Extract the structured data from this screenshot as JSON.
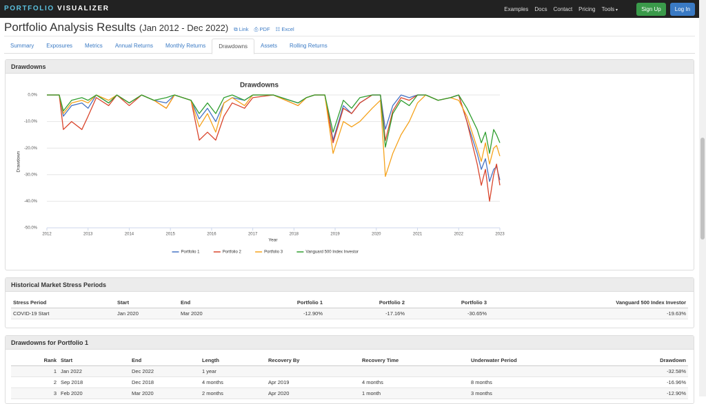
{
  "nav": {
    "brand": [
      "PORTFOLIO",
      "VISUALIZER"
    ],
    "links": [
      "Examples",
      "Docs",
      "Contact",
      "Pricing",
      "Tools"
    ],
    "buttons": [
      "Sign Up",
      "Log In"
    ]
  },
  "header": {
    "title": "Portfolio Analysis Results",
    "period": "(Jan 2012 - Dec 2022)",
    "links": [
      "Link",
      "PDF",
      "Excel"
    ]
  },
  "tabs": {
    "items": [
      "Summary",
      "Exposures",
      "Metrics",
      "Annual Returns",
      "Monthly Returns",
      "Drawdowns",
      "Assets",
      "Rolling Returns"
    ],
    "active": 5
  },
  "drawdowns_panel": {
    "title": "Drawdowns"
  },
  "chart_data": {
    "type": "line",
    "title": "Drawdowns",
    "x_label": "Year",
    "y_label": "Drawdown",
    "x": [
      2012,
      2012.3,
      2012.4,
      2012.6,
      2012.85,
      2013,
      2013.2,
      2013.5,
      2013.7,
      2014,
      2014.3,
      2014.6,
      2014.9,
      2015.1,
      2015.5,
      2015.7,
      2015.9,
      2016.1,
      2016.3,
      2016.5,
      2016.8,
      2017,
      2017.5,
      2018.1,
      2018.3,
      2018.5,
      2018.75,
      2018.95,
      2019.2,
      2019.4,
      2019.6,
      2019.9,
      2020.1,
      2020.22,
      2020.4,
      2020.6,
      2020.8,
      2021,
      2021.2,
      2021.5,
      2021.8,
      2022,
      2022.2,
      2022.45,
      2022.55,
      2022.65,
      2022.75,
      2022.85,
      2022.92,
      2023
    ],
    "xlim": [
      2012,
      2023
    ],
    "xticks": [
      2012,
      2013,
      2014,
      2015,
      2016,
      2017,
      2018,
      2019,
      2020,
      2021,
      2022,
      2023
    ],
    "ylim": [
      -50,
      0
    ],
    "yticks": [
      {
        "value": 0,
        "label": "0.0%"
      },
      {
        "value": -10,
        "label": "-10.0%"
      },
      {
        "value": -20,
        "label": "-20.0%"
      },
      {
        "value": -30,
        "label": "-30.0%"
      },
      {
        "value": -40,
        "label": "-40.0%"
      },
      {
        "value": -50,
        "label": "-50.0%"
      }
    ],
    "grid": true,
    "legend": "bottom",
    "series": [
      {
        "name": "Portfolio 1",
        "color": "#4472c4",
        "values": [
          0,
          0,
          -8,
          -4,
          -3,
          -5,
          0,
          -3,
          0,
          -3,
          0,
          -2,
          -3,
          0,
          -2,
          -9,
          -5,
          -10,
          -3,
          -1,
          -2,
          0,
          0,
          -3,
          -1,
          0,
          0,
          -17,
          -4,
          -7,
          -3,
          0,
          0,
          -12.9,
          -4,
          0,
          -1,
          0,
          0,
          -2,
          -1,
          0,
          -10,
          -22,
          -28,
          -24,
          -32.58,
          -28,
          -27,
          -32
        ]
      },
      {
        "name": "Portfolio 2",
        "color": "#d9442b",
        "values": [
          0,
          0,
          -13,
          -10,
          -13,
          -8,
          -1,
          -4,
          0,
          -4,
          0,
          -2,
          -5,
          0,
          -2,
          -17,
          -14,
          -17,
          -8,
          -3,
          -5,
          -1,
          0,
          -4,
          -1,
          0,
          0,
          -18,
          -5,
          -7,
          -3,
          0,
          0,
          -17.16,
          -6,
          -1,
          -2,
          0,
          0,
          -2,
          -1,
          0,
          -10,
          -26,
          -34,
          -28,
          -40,
          -30,
          -26,
          -34
        ]
      },
      {
        "name": "Portfolio 3",
        "color": "#f5a21b",
        "values": [
          0,
          0,
          -7,
          -3,
          -2,
          -3,
          0,
          -2,
          0,
          -3,
          0,
          -2,
          -5,
          0,
          -2,
          -12,
          -7,
          -14,
          -3,
          -1,
          -4,
          0,
          0,
          -4,
          -1,
          0,
          0,
          -22,
          -10,
          -12,
          -10,
          -5,
          -2,
          -30.65,
          -22,
          -15,
          -10,
          -3,
          0,
          -2,
          -1,
          -2,
          -8,
          -20,
          -25,
          -18,
          -26,
          -20,
          -19,
          -23
        ]
      },
      {
        "name": "Vanguard 500 Index Investor",
        "color": "#2f9e2f",
        "values": [
          0,
          0,
          -6,
          -2,
          -1,
          -2,
          0,
          -3,
          0,
          -3,
          0,
          -2,
          -1,
          0,
          -2,
          -7,
          -3,
          -7,
          -1,
          0,
          -2,
          0,
          0,
          -3,
          -1,
          0,
          0,
          -14,
          -2,
          -5,
          -1,
          0,
          0,
          -19.63,
          -7,
          -2,
          -4,
          0,
          0,
          -2,
          -1,
          0,
          -5,
          -13,
          -18,
          -14,
          -22,
          -13,
          -15,
          -18
        ]
      }
    ]
  },
  "stress_panel": {
    "title": "Historical Market Stress Periods",
    "columns": [
      "Stress Period",
      "Start",
      "End",
      "Portfolio 1",
      "Portfolio 2",
      "Portfolio 3",
      "Vanguard 500 Index Investor"
    ],
    "rows": [
      [
        "COVID-19 Start",
        "Jan 2020",
        "Mar 2020",
        "-12.90%",
        "-17.16%",
        "-30.65%",
        "-19.63%"
      ]
    ]
  },
  "dd_panel": {
    "title": "Drawdowns for Portfolio 1",
    "columns": [
      "Rank",
      "Start",
      "End",
      "Length",
      "Recovery By",
      "Recovery Time",
      "Underwater Period",
      "Drawdown"
    ],
    "rows": [
      [
        "1",
        "Jan 2022",
        "Dec 2022",
        "1 year",
        null,
        null,
        null,
        "-32.58%"
      ],
      [
        "2",
        "Sep 2018",
        "Dec 2018",
        "4 months",
        "Apr 2019",
        "4 months",
        "8 months",
        "-16.96%"
      ],
      [
        "3",
        "Feb 2020",
        "Mar 2020",
        "2 months",
        "Apr 2020",
        "1 month",
        "3 months",
        "-12.90%"
      ]
    ]
  }
}
